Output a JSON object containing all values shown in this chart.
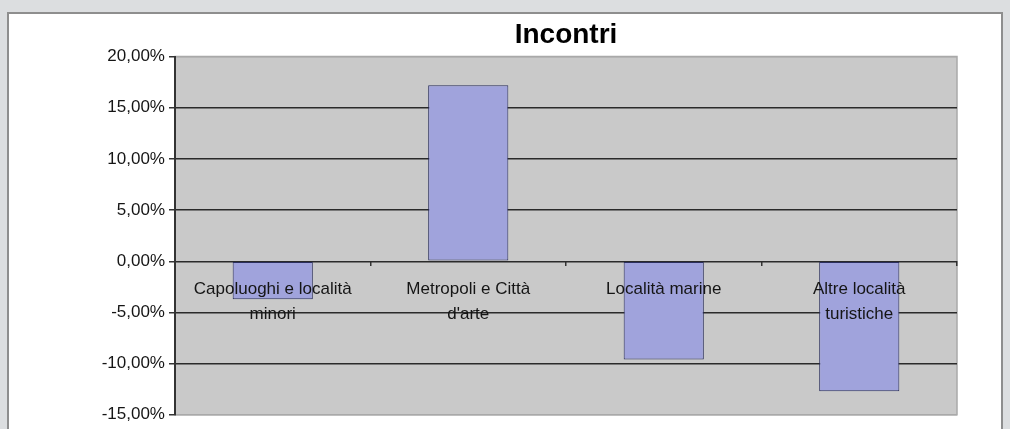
{
  "chart_data": {
    "type": "bar",
    "title": "Incontri",
    "categories": [
      "Capoluoghi e località minori",
      "Metropoli e Città d'arte",
      "Località marine",
      "Altre località turistiche"
    ],
    "values": [
      -3.7,
      17.2,
      -9.6,
      -12.7
    ],
    "color": "#a0a3dc",
    "ylim": [
      -15,
      20
    ],
    "yticks": [
      {
        "value": -15,
        "label": "-15,00%"
      },
      {
        "value": -10,
        "label": "-10,00%"
      },
      {
        "value": -5,
        "label": "-5,00%"
      },
      {
        "value": 0,
        "label": "0,00%"
      },
      {
        "value": 5,
        "label": "5,00%"
      },
      {
        "value": 10,
        "label": "10,00%"
      },
      {
        "value": 15,
        "label": "15,00%"
      },
      {
        "value": 20,
        "label": "20,00%"
      }
    ],
    "grid": "y"
  }
}
